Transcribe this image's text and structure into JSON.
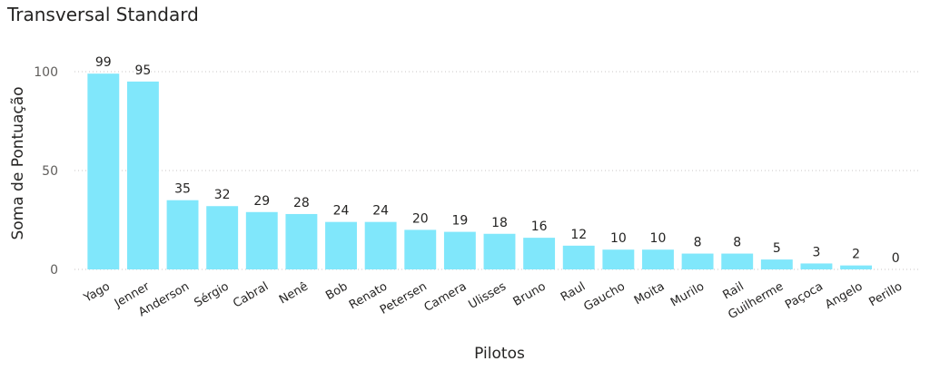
{
  "chart_data": {
    "type": "bar",
    "title": "Transversal Standard",
    "xlabel": "Pilotos",
    "ylabel": "Soma de Pontuação",
    "categories": [
      "Yago",
      "Jenner",
      "Anderson",
      "Sérgio",
      "Cabral",
      "Nenê",
      "Bob",
      "Renato",
      "Petersen",
      "Camera",
      "Ulisses",
      "Bruno",
      "Raul",
      "Gaucho",
      "Moita",
      "Murilo",
      "Rail",
      "Guilherme",
      "Paçoca",
      "Angelo",
      "Perillo"
    ],
    "values": [
      99,
      95,
      35,
      32,
      29,
      28,
      24,
      24,
      20,
      19,
      18,
      16,
      12,
      10,
      10,
      8,
      8,
      5,
      3,
      2,
      0
    ],
    "yticks": [
      0,
      50,
      100
    ],
    "ylim": [
      0,
      100
    ],
    "grid": true,
    "bar_color": "#80e7fb",
    "grid_color": "#c8c6c4"
  }
}
